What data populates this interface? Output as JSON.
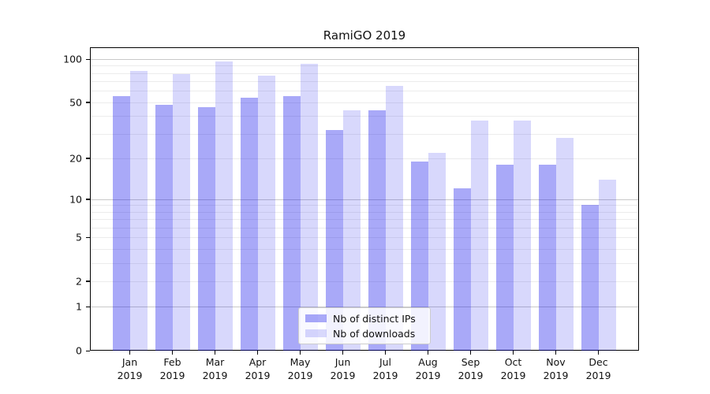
{
  "figure": {
    "background": "#ffffff",
    "title": "RamiGO 2019"
  },
  "chart_data": {
    "type": "bar",
    "title": "RamiGO 2019",
    "xlabel": "",
    "ylabel": "",
    "y_scale": "log1p",
    "ylim": [
      0,
      110
    ],
    "grid": "on",
    "legend_position": "bottom-center",
    "categories": [
      "Jan",
      "Feb",
      "Mar",
      "Apr",
      "May",
      "Jun",
      "Jul",
      "Aug",
      "Sep",
      "Oct",
      "Nov",
      "Dec"
    ],
    "category_year": "2019",
    "series": [
      {
        "name": "Nb of distinct IPs",
        "color": "rgba(10,10,235,0.35)",
        "values": [
          55,
          48,
          46,
          54,
          55,
          32,
          44,
          19,
          12,
          18,
          18,
          9
        ]
      },
      {
        "name": "Nb of downloads",
        "color": "rgba(10,10,235,0.16)",
        "values": [
          83,
          79,
          96,
          77,
          93,
          44,
          65,
          22,
          37,
          37,
          28,
          14
        ]
      }
    ],
    "y_ticks": [
      0,
      1,
      2,
      5,
      10,
      20,
      50,
      100
    ],
    "y_grid_major": [
      1,
      10,
      100
    ],
    "y_grid_minor": [
      2,
      3,
      4,
      5,
      6,
      7,
      8,
      9,
      20,
      30,
      40,
      50,
      60,
      70,
      80,
      90
    ],
    "colors": {
      "spine": "#000000",
      "grid_minor": "#ececec",
      "grid_major": "#c9c9c9",
      "text": "#111111"
    }
  }
}
